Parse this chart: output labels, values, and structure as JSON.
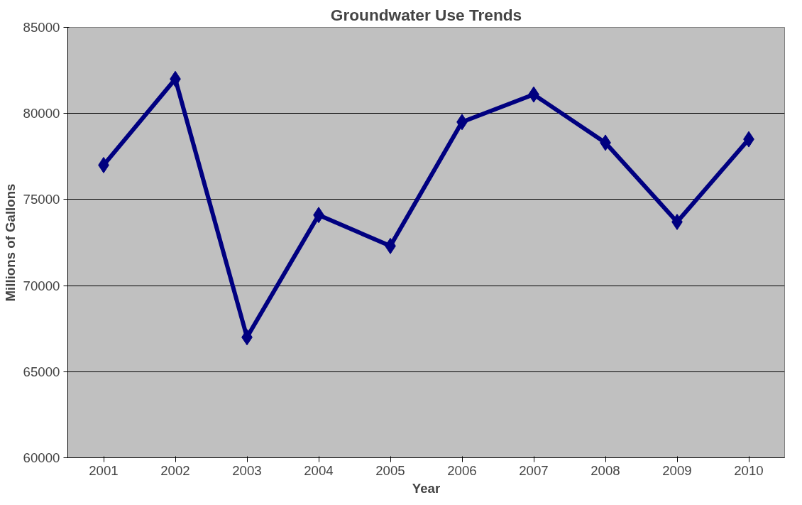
{
  "chart_data": {
    "type": "line",
    "title": "Groundwater Use Trends",
    "xlabel": "Year",
    "ylabel": "Millions of Gallons",
    "categories": [
      "2001",
      "2002",
      "2003",
      "2004",
      "2005",
      "2006",
      "2007",
      "2008",
      "2009",
      "2010"
    ],
    "series": [
      {
        "color": "#000080",
        "values": [
          77000,
          82000,
          67000,
          74100,
          72300,
          79500,
          81100,
          78300,
          73700,
          78500
        ]
      }
    ],
    "ylim": [
      60000,
      85000
    ],
    "yticks": [
      60000,
      65000,
      70000,
      75000,
      80000,
      85000
    ],
    "grid": "y",
    "marker": "diamond",
    "line_style": "solid"
  }
}
